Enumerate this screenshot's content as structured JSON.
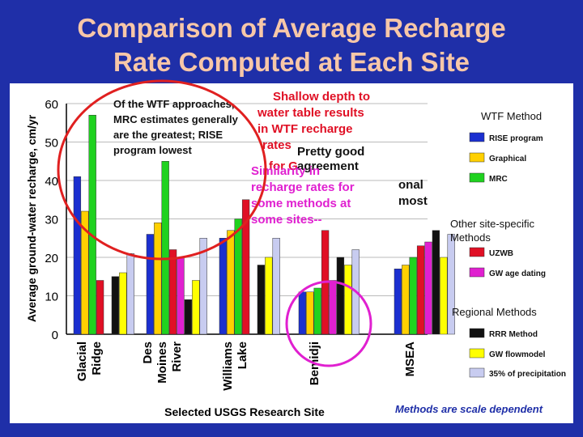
{
  "slide": {
    "title_line1": "Comparison of Average Recharge",
    "title_line2": "Rate Computed at Each Site",
    "footnote": "Methods are scale dependent"
  },
  "annotations": {
    "wtf_note": [
      "Of the WTF approaches,",
      "MRC estimates generally",
      "are the greatest; RISE",
      "program lowest"
    ],
    "shallow_note": [
      "Shallow depth to",
      "water table results",
      "in WTF recharge",
      "rates"
    ],
    "pretty_good": [
      "Pretty good",
      "agreement"
    ],
    "regional_fragment": [
      "onal",
      "most"
    ],
    "similarity_note": [
      "Similarity in",
      "recharge rates for",
      "some methods at",
      "some sites--"
    ],
    "for_g_fragment": "for G"
  },
  "legend": {
    "wtf_header": "WTF Method",
    "site_header": [
      "Other site-specific",
      "Methods"
    ],
    "regional_header": "Regional Methods"
  },
  "colors": {
    "background": "#1f2fa8",
    "title": "#f7c7a8",
    "RISE program": "#1b2fd0",
    "Graphical": "#ffd000",
    "MRC": "#1fd21f",
    "UZWB": "#e01025",
    "GW age dating": "#e020d0",
    "RRR Method": "#111111",
    "GW flowmodel": "#ffff00",
    "35% of precipitation": "#c8ccf0",
    "annotation_red": "#e01025",
    "annotation_magenta": "#e020d0",
    "highlight_circle_red": "#e02020",
    "highlight_circle_magenta": "#e020d0"
  },
  "chart_data": {
    "type": "bar",
    "title": "",
    "xlabel": "Selected USGS Research Site",
    "ylabel": "Average ground-water recharge, cm/yr",
    "ylim": [
      0,
      60
    ],
    "yticks": [
      0,
      10,
      20,
      30,
      40,
      50,
      60
    ],
    "grid": true,
    "legend_position": "right",
    "categories": [
      "Glacial Ridge",
      "Des Moines River",
      "Williams Lake",
      "Bemidji",
      "MSEA"
    ],
    "series": [
      {
        "name": "RISE program",
        "group": "WTF Method",
        "values": [
          41,
          26,
          25,
          11,
          17
        ]
      },
      {
        "name": "Graphical",
        "group": "WTF Method",
        "values": [
          32,
          29,
          27,
          11,
          18
        ]
      },
      {
        "name": "MRC",
        "group": "WTF Method",
        "values": [
          57,
          45,
          30,
          12,
          20
        ]
      },
      {
        "name": "UZWB",
        "group": "Other site-specific Methods",
        "values": [
          14,
          22,
          35,
          27,
          23
        ]
      },
      {
        "name": "GW age dating",
        "group": "Other site-specific Methods",
        "values": [
          null,
          20,
          null,
          14,
          24
        ]
      },
      {
        "name": "RRR Method",
        "group": "Regional Methods",
        "values": [
          15,
          9,
          18,
          20,
          27
        ]
      },
      {
        "name": "GW flowmodel",
        "group": "Regional Methods",
        "values": [
          16,
          14,
          20,
          18,
          20
        ]
      },
      {
        "name": "35% of precipitation",
        "group": "Regional Methods",
        "values": [
          21,
          25,
          25,
          22,
          26
        ]
      }
    ]
  }
}
